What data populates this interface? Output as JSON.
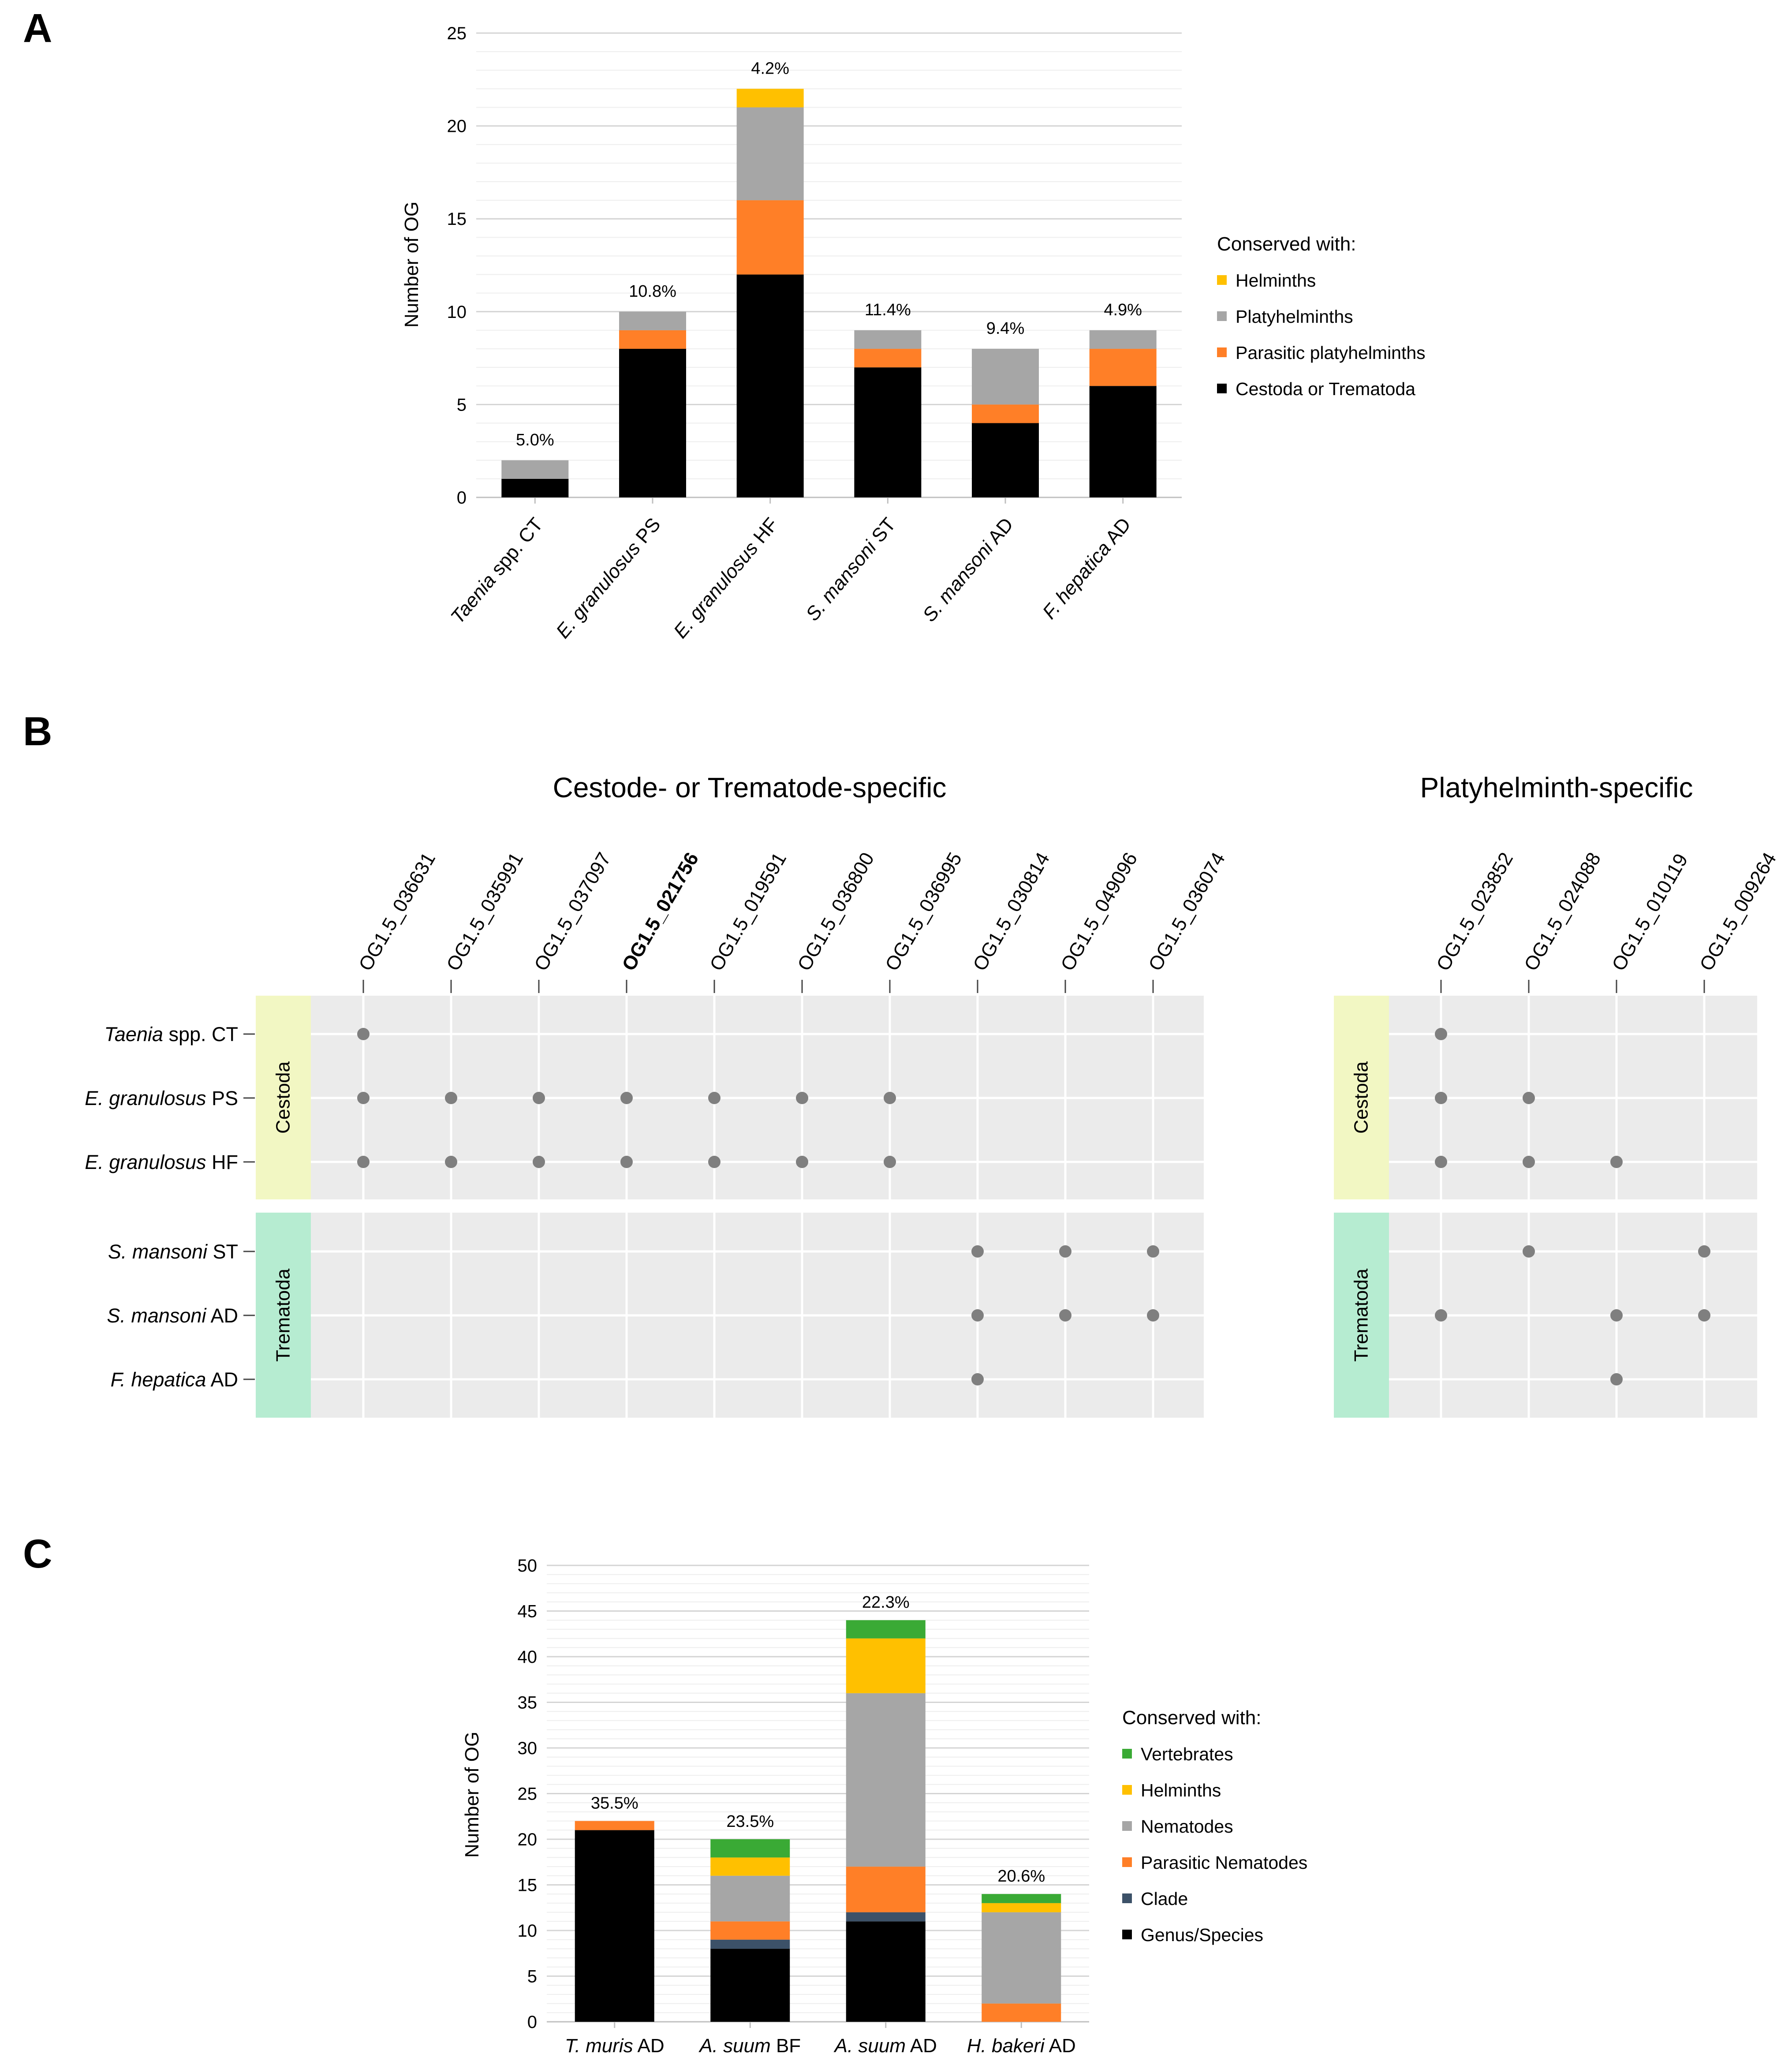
{
  "colors": {
    "black": "#000000",
    "orange": "#ff7f27",
    "gray": "#a6a6a6",
    "yellow": "#ffc000",
    "green": "#3aaa35",
    "navy": "#3c5168",
    "dot": "#7f7f7f",
    "grid_bg": "#ebebeb",
    "cestoda_strip": "#f2f7c3",
    "trematoda_strip": "#b6ecd1"
  },
  "chart_data": [
    {
      "panel": "A",
      "type": "bar",
      "stacked": true,
      "ylabel": "Number of OG",
      "ylim": [
        0,
        25
      ],
      "yticks": [
        0,
        5,
        10,
        15,
        20,
        25
      ],
      "categories": [
        {
          "italic": "Taenia",
          "rest": " spp. CT"
        },
        {
          "italic": "E. granulosus",
          "rest": " PS"
        },
        {
          "italic": "E. granulosus",
          "rest": " HF"
        },
        {
          "italic": "S. mansoni",
          "rest": " ST"
        },
        {
          "italic": "S. mansoni",
          "rest": " AD"
        },
        {
          "italic": "F. hepatica",
          "rest": " AD"
        }
      ],
      "percent_labels": [
        "5.0%",
        "10.8%",
        "4.2%",
        "11.4%",
        "9.4%",
        "4.9%"
      ],
      "legend_title": "Conserved with:",
      "series": [
        {
          "name": "Cestoda or Trematoda",
          "color": "#000000",
          "values": [
            1,
            8,
            12,
            7,
            4,
            6
          ]
        },
        {
          "name": "Parasitic platyhelminths",
          "color": "#ff7f27",
          "values": [
            0,
            1,
            4,
            1,
            1,
            2
          ]
        },
        {
          "name": "Platyhelminths",
          "color": "#a6a6a6",
          "values": [
            1,
            1,
            5,
            1,
            3,
            1
          ]
        },
        {
          "name": "Helminths",
          "color": "#ffc000",
          "values": [
            0,
            0,
            1,
            0,
            0,
            0
          ]
        }
      ],
      "legend_order": [
        "Helminths",
        "Platyhelminths",
        "Parasitic platyhelminths",
        "Cestoda or Trematoda"
      ]
    },
    {
      "panel": "B",
      "type": "dot-matrix",
      "rows": [
        {
          "italic": "Taenia",
          "rest": " spp. CT",
          "group": "Cestoda"
        },
        {
          "italic": "E. granulosus",
          "rest": " PS",
          "group": "Cestoda"
        },
        {
          "italic": "E. granulosus",
          "rest": " HF",
          "group": "Cestoda"
        },
        {
          "italic": "S. mansoni",
          "rest": " ST",
          "group": "Trematoda"
        },
        {
          "italic": "S. mansoni",
          "rest": " AD",
          "group": "Trematoda"
        },
        {
          "italic": "F. hepatica",
          "rest": " AD",
          "group": "Trematoda"
        }
      ],
      "groups": [
        "Cestoda",
        "Trematoda"
      ],
      "blocks": [
        {
          "title": "Cestode- or Trematode-specific",
          "columns": [
            "OG1.5_036631",
            "OG1.5_035991",
            "OG1.5_037097",
            "OG1.5_021756",
            "OG1.5_019591",
            "OG1.5_036800",
            "OG1.5_036995",
            "OG1.5_030814",
            "OG1.5_049096",
            "OG1.5_036074"
          ],
          "bold_columns": [
            "OG1.5_021756"
          ],
          "presence": [
            [
              1,
              0,
              0,
              0,
              0,
              0,
              0,
              0,
              0,
              0
            ],
            [
              1,
              1,
              1,
              1,
              1,
              1,
              1,
              0,
              0,
              0
            ],
            [
              1,
              1,
              1,
              1,
              1,
              1,
              1,
              0,
              0,
              0
            ],
            [
              0,
              0,
              0,
              0,
              0,
              0,
              0,
              1,
              1,
              1
            ],
            [
              0,
              0,
              0,
              0,
              0,
              0,
              0,
              1,
              1,
              1
            ],
            [
              0,
              0,
              0,
              0,
              0,
              0,
              0,
              1,
              0,
              0
            ]
          ]
        },
        {
          "title": "Platyhelminth-specific",
          "columns": [
            "OG1.5_023852",
            "OG1.5_024088",
            "OG1.5_010119",
            "OG1.5_009264"
          ],
          "bold_columns": [],
          "presence": [
            [
              1,
              0,
              0,
              0
            ],
            [
              1,
              1,
              0,
              0
            ],
            [
              1,
              1,
              1,
              0
            ],
            [
              0,
              1,
              0,
              1
            ],
            [
              1,
              0,
              1,
              1
            ],
            [
              0,
              0,
              1,
              0
            ]
          ]
        }
      ]
    },
    {
      "panel": "C",
      "type": "bar",
      "stacked": true,
      "ylabel": "Number of OG",
      "ylim": [
        0,
        50
      ],
      "yticks": [
        0,
        5,
        10,
        15,
        20,
        25,
        30,
        35,
        40,
        45,
        50
      ],
      "categories": [
        {
          "italic": "T. muris",
          "rest": " AD"
        },
        {
          "italic": "A. suum",
          "rest": " BF"
        },
        {
          "italic": "A. suum",
          "rest": " AD"
        },
        {
          "italic": "H. bakeri",
          "rest": " AD"
        }
      ],
      "percent_labels": [
        "35.5%",
        "23.5%",
        "22.3%",
        "20.6%"
      ],
      "legend_title": "Conserved with:",
      "series": [
        {
          "name": "Genus/Species",
          "color": "#000000",
          "values": [
            21,
            8,
            11,
            0
          ]
        },
        {
          "name": "Clade",
          "color": "#3c5168",
          "values": [
            0,
            1,
            1,
            0
          ]
        },
        {
          "name": "Parasitic Nematodes",
          "color": "#ff7f27",
          "values": [
            1,
            2,
            5,
            2
          ]
        },
        {
          "name": "Nematodes",
          "color": "#a6a6a6",
          "values": [
            0,
            5,
            19,
            10
          ]
        },
        {
          "name": "Helminths",
          "color": "#ffc000",
          "values": [
            0,
            2,
            6,
            1
          ]
        },
        {
          "name": "Vertebrates",
          "color": "#3aaa35",
          "values": [
            0,
            2,
            2,
            1
          ]
        }
      ],
      "legend_order": [
        "Vertebrates",
        "Helminths",
        "Nematodes",
        "Parasitic Nematodes",
        "Clade",
        "Genus/Species"
      ]
    }
  ],
  "panel_letters": [
    "A",
    "B",
    "C"
  ]
}
